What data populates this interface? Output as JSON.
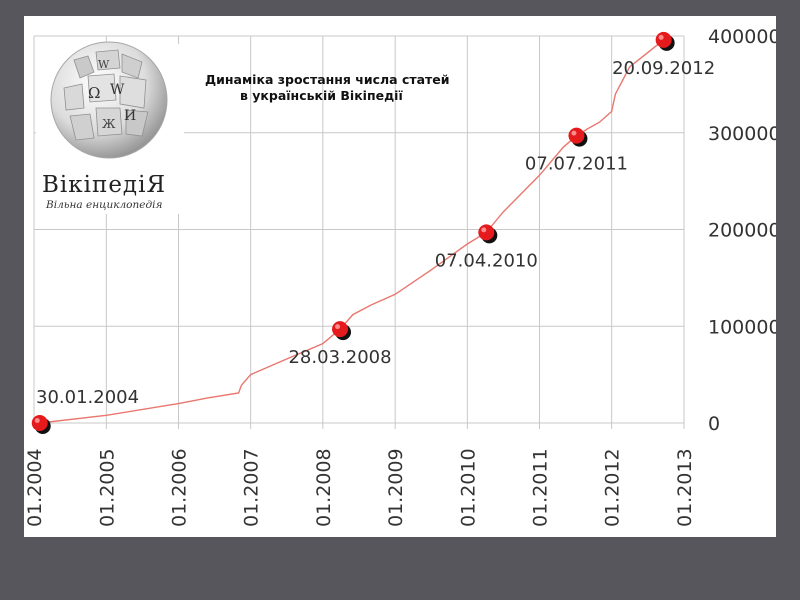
{
  "logo": {
    "name": "ВікіпедіЯ",
    "tagline": "Вільна енциклопедія",
    "globe_glyphs": [
      "Ω",
      "W",
      "И",
      "W",
      "Ж"
    ]
  },
  "chart_data": {
    "type": "line",
    "title_lines": [
      "Динаміка зростання числа статей",
      "в українській Вікіпедії"
    ],
    "xlabel": "",
    "ylabel": "",
    "x_ticks": [
      "01.2004",
      "01.2005",
      "01.2006",
      "01.2007",
      "01.2008",
      "01.2009",
      "01.2010",
      "01.2011",
      "01.2012",
      "01.2013"
    ],
    "y_ticks": [
      "0",
      "100000",
      "200000",
      "300000",
      "400000"
    ],
    "ylim": [
      0,
      400000
    ],
    "xlim": [
      "2004-01-01",
      "2013-01-01"
    ],
    "grid": true,
    "line_color": "#e8776f",
    "series": [
      {
        "x": [
          "2004-01-30",
          "2005-01-01",
          "2006-01-01",
          "2006-06-01",
          "2006-11-01",
          "2006-11-15",
          "2007-01-01",
          "2007-07-01",
          "2008-01-01",
          "2008-03-28",
          "2008-06-01",
          "2008-09-01",
          "2009-01-01",
          "2009-07-01",
          "2010-01-01",
          "2010-04-07",
          "2010-07-01",
          "2011-01-01",
          "2011-05-01",
          "2011-07-07",
          "2011-09-01",
          "2011-11-01",
          "2012-01-01",
          "2012-01-20",
          "2012-04-01",
          "2012-09-20"
        ],
        "y": [
          0,
          8000,
          20000,
          26000,
          31000,
          39000,
          50000,
          66000,
          82000,
          97000,
          112000,
          122000,
          133000,
          158000,
          185000,
          197000,
          218000,
          256000,
          285000,
          297000,
          304000,
          311000,
          322000,
          340000,
          368000,
          396000
        ]
      }
    ],
    "markers": [
      {
        "x": "2004-01-30",
        "y": 0,
        "label": "30.01.2004",
        "label_pos": "above"
      },
      {
        "x": "2008-03-28",
        "y": 97000,
        "label": "28.03.2008",
        "label_pos": "below"
      },
      {
        "x": "2010-04-07",
        "y": 197000,
        "label": "07.04.2010",
        "label_pos": "below"
      },
      {
        "x": "2011-07-07",
        "y": 297000,
        "label": "07.07.2011",
        "label_pos": "below"
      },
      {
        "x": "2012-09-20",
        "y": 396000,
        "label": "20.09.2012",
        "label_pos": "below"
      }
    ],
    "marker_color": "#e41a1c"
  }
}
